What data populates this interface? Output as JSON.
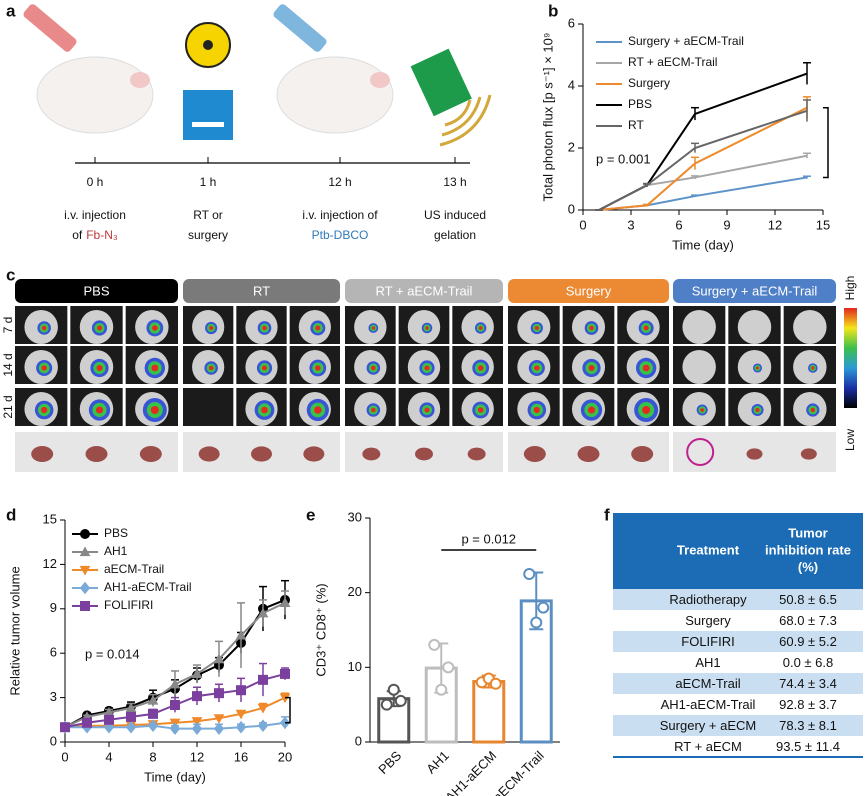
{
  "panel_labels": [
    "a",
    "b",
    "c",
    "d",
    "e",
    "f"
  ],
  "timeline": {
    "steps": [
      {
        "time": "0 h",
        "lines": [
          [
            {
              "text": "i.v. injection"
            }
          ],
          [
            {
              "text": "of"
            },
            {
              "text": "Fb-N₃",
              "color": "#c0393b"
            }
          ]
        ]
      },
      {
        "time": "1 h",
        "lines": [
          [
            {
              "text": "RT or"
            }
          ],
          [
            {
              "text": "surgery"
            }
          ]
        ]
      },
      {
        "time": "12 h",
        "lines": [
          [
            {
              "text": "i.v. injection of"
            }
          ],
          [
            {
              "text": "Ptb-DBCO",
              "color": "#2f7ab9"
            }
          ]
        ]
      },
      {
        "time": "13 h",
        "lines": [
          [
            {
              "text": "US induced"
            }
          ],
          [
            {
              "text": "gelation"
            }
          ]
        ]
      }
    ]
  },
  "imaging": {
    "groups": [
      {
        "name": "PBS",
        "color": "#000000"
      },
      {
        "name": "RT",
        "color": "#7a7a7a"
      },
      {
        "name": "RT + aECM-Trail",
        "color": "#b5b5b5"
      },
      {
        "name": "Surgery",
        "color": "#ec8a33"
      },
      {
        "name": "Surgery + aECM-Trail",
        "color": "#4f7fc7"
      }
    ],
    "rows": [
      "7 d",
      "14 d",
      "21 d"
    ],
    "scale": {
      "high": "High",
      "low": "Low"
    }
  },
  "chart_data": [
    {
      "type": "line",
      "xlabel": "Time (day)",
      "ylabel": "Total photon flux [p s⁻¹] × 10⁹",
      "x": [
        1,
        4,
        7,
        14
      ],
      "xlim": [
        0,
        15
      ],
      "xticks": [
        0,
        3,
        6,
        9,
        12,
        15
      ],
      "ylim": [
        0,
        6
      ],
      "yticks": [
        0,
        2,
        4,
        6
      ],
      "annotation": "p = 0.001",
      "series": [
        {
          "name": "Surgery + aECM-Trail",
          "color": "#5b93c8",
          "values": [
            0,
            0.15,
            0.45,
            1.05
          ],
          "errors": [
            0,
            0.02,
            0.03,
            0.04
          ]
        },
        {
          "name": "RT + aECM-Trail",
          "color": "#a6a6a6",
          "values": [
            0,
            0.8,
            1.05,
            1.75
          ],
          "errors": [
            0,
            0.03,
            0.05,
            0.08
          ]
        },
        {
          "name": "Surgery",
          "color": "#ee8a2c",
          "values": [
            0,
            0.15,
            1.5,
            3.3
          ],
          "errors": [
            0,
            0.03,
            0.2,
            0.35
          ]
        },
        {
          "name": "PBS",
          "color": "#000000",
          "values": [
            0,
            0.8,
            3.1,
            4.4
          ],
          "errors": [
            0,
            0.05,
            0.2,
            0.35
          ]
        },
        {
          "name": "RT",
          "color": "#666666",
          "values": [
            0,
            0.8,
            2.0,
            3.2
          ],
          "errors": [
            0,
            0.05,
            0.15,
            0.35
          ]
        }
      ]
    },
    {
      "type": "line",
      "xlabel": "Time (day)",
      "ylabel": "Relative tumor volume",
      "x": [
        0,
        2,
        4,
        6,
        8,
        10,
        12,
        14,
        16,
        18,
        20
      ],
      "xlim": [
        0,
        20
      ],
      "xticks": [
        0,
        4,
        8,
        12,
        16,
        20
      ],
      "ylim": [
        0,
        15
      ],
      "yticks": [
        0,
        3,
        6,
        9,
        12,
        15
      ],
      "annotation": "p = 0.014",
      "series": [
        {
          "name": "PBS",
          "color": "#000000",
          "marker": "circle",
          "values": [
            1,
            1.8,
            2.1,
            2.4,
            3.0,
            3.6,
            4.5,
            5.2,
            6.7,
            9.0,
            9.6
          ],
          "errors": [
            0,
            0.1,
            0.2,
            0.3,
            0.5,
            0.6,
            0.5,
            0.5,
            0.7,
            1.5,
            1.3
          ]
        },
        {
          "name": "AH1",
          "color": "#888888",
          "marker": "triangle",
          "values": [
            1,
            1.7,
            2.0,
            2.3,
            2.8,
            3.9,
            4.6,
            5.6,
            7.2,
            8.7,
            9.4
          ],
          "errors": [
            0,
            0.1,
            0.2,
            0.3,
            0.4,
            0.9,
            0.6,
            1.2,
            2.2,
            0.9,
            0.8
          ]
        },
        {
          "name": "aECM-Trail",
          "color": "#f0892a",
          "marker": "triangle-down",
          "values": [
            1,
            1.1,
            1.1,
            1.15,
            1.2,
            1.3,
            1.4,
            1.6,
            1.9,
            2.3,
            3.0
          ],
          "errors": [
            0,
            0.1,
            0.1,
            0.1,
            0.1,
            0.1,
            0.1,
            0.2,
            0.2,
            0.3,
            0.3
          ]
        },
        {
          "name": "AH1-aECM-Trail",
          "color": "#7aaad8",
          "marker": "diamond",
          "values": [
            1,
            1.0,
            1.0,
            1.0,
            1.1,
            0.9,
            0.9,
            0.9,
            1.0,
            1.1,
            1.3
          ],
          "errors": [
            0,
            0.05,
            0.05,
            0.05,
            0.1,
            0.2,
            0.3,
            0.3,
            0.2,
            0.2,
            0.4
          ]
        },
        {
          "name": "FOLIFIRI",
          "color": "#7b3f9e",
          "marker": "square",
          "values": [
            1,
            1.3,
            1.5,
            1.7,
            1.9,
            2.5,
            3.1,
            3.3,
            3.5,
            4.2,
            4.6
          ],
          "errors": [
            0,
            0.1,
            0.2,
            0.2,
            0.3,
            0.5,
            0.6,
            0.6,
            0.8,
            1.1,
            0.4
          ]
        }
      ]
    },
    {
      "type": "bar",
      "ylabel": "CD3⁺ CD8⁺ (%)",
      "annotation": "p = 0.012",
      "categories": [
        "PBS",
        "AH1",
        "AH1-aECM",
        "AH1-aECM-Trail"
      ],
      "values": [
        5.8,
        9.9,
        8.1,
        18.9
      ],
      "errors": [
        1.0,
        3.3,
        0.8,
        3.8
      ],
      "points": [
        [
          5.0,
          7.0,
          5.5
        ],
        [
          13.0,
          7.0,
          10.0
        ],
        [
          8.0,
          8.5,
          7.8
        ],
        [
          22.5,
          16.0,
          18.0
        ]
      ],
      "colors": [
        "#555555",
        "#bdbdbd",
        "#e8862f",
        "#5b8fc1"
      ],
      "ylim": [
        0,
        30
      ],
      "yticks": [
        0,
        10,
        20,
        30
      ]
    }
  ],
  "table": {
    "header": [
      [
        "Treatment"
      ],
      [
        "Tumor",
        "inhibition rate",
        "(%)"
      ]
    ],
    "rows": [
      [
        "Radiotherapy",
        "50.8 ± 6.5"
      ],
      [
        "Surgery",
        "68.0 ± 7.3"
      ],
      [
        "FOLIFIRI",
        "60.9 ± 5.2"
      ],
      [
        "AH1",
        "0.0 ± 6.8"
      ],
      [
        "aECM-Trail",
        "74.4 ± 3.4"
      ],
      [
        "AH1-aECM-Trail",
        "92.8 ± 3.7"
      ],
      [
        "Surgery + aECM",
        "78.3 ± 8.1"
      ],
      [
        "RT + aECM",
        "93.5 ± 11.4"
      ]
    ]
  }
}
